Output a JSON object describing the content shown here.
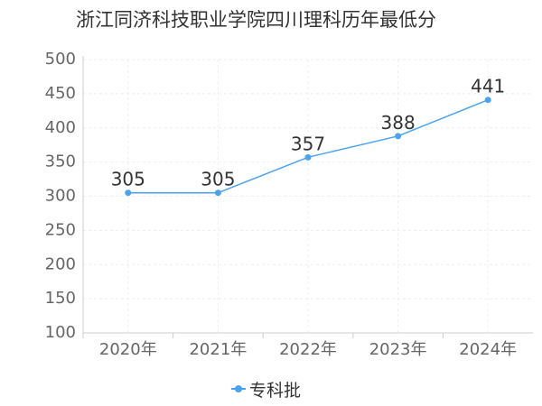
{
  "colors": {
    "series": "#4aa3f0",
    "grid": "#eeeeee",
    "axis": "#cccccc",
    "text": "#333333",
    "tick_text": "#666666"
  },
  "chart_data": {
    "type": "line",
    "title": "浙江同济科技职业学院四川理科历年最低分",
    "xlabel": "",
    "ylabel": "",
    "categories": [
      "2020年",
      "2021年",
      "2022年",
      "2023年",
      "2024年"
    ],
    "series": [
      {
        "name": "专科批",
        "values": [
          305,
          305,
          357,
          388,
          441
        ]
      }
    ],
    "y_ticks": [
      100,
      150,
      200,
      250,
      300,
      350,
      400,
      450,
      500
    ],
    "ylim": [
      100,
      500
    ],
    "grid": true,
    "legend": "bottom-center",
    "data_labels": true
  }
}
